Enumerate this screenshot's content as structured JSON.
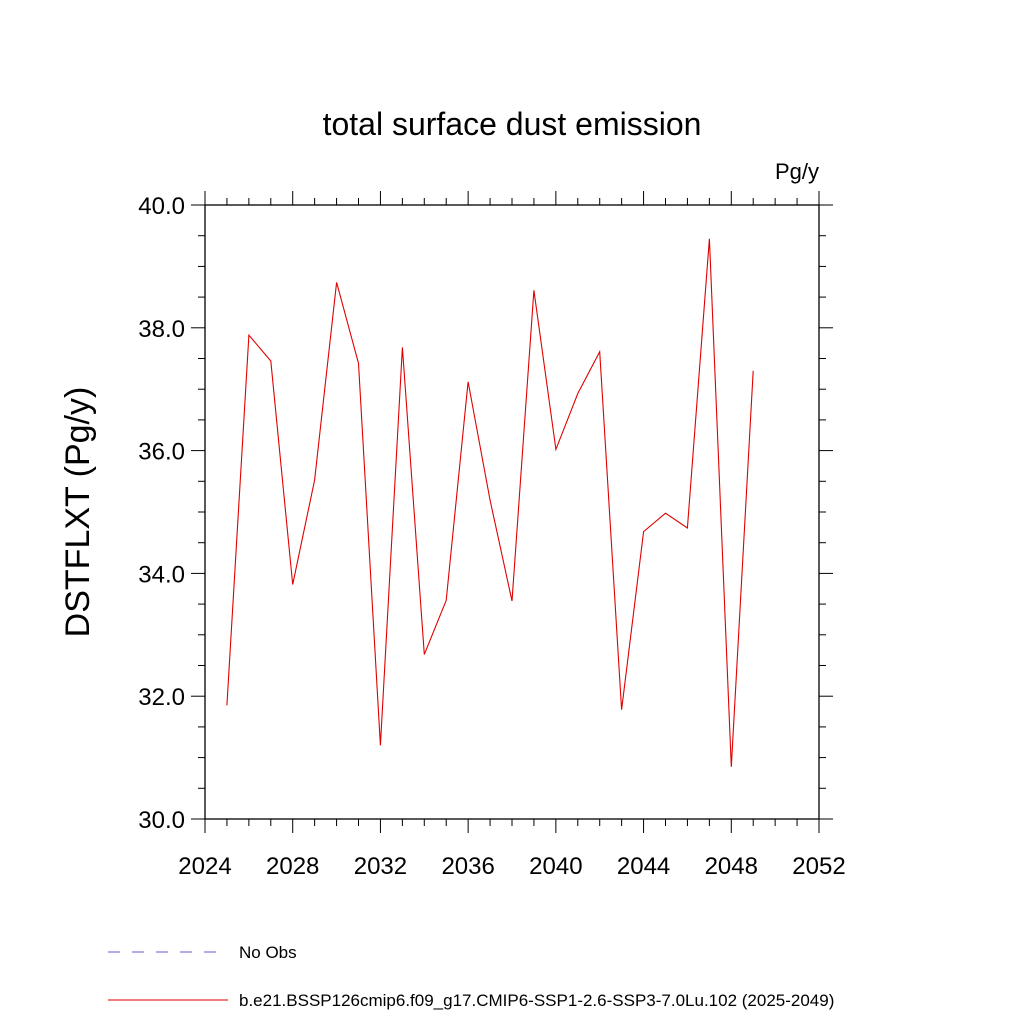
{
  "chart_data": {
    "type": "line",
    "title": "total surface dust emission",
    "units_label": "Pg/y",
    "ylabel": "DSTFLXT  (Pg/y)",
    "xlabel": "",
    "xlim": [
      2024,
      2052
    ],
    "ylim": [
      30.0,
      40.0
    ],
    "xticks": [
      "2024",
      "2028",
      "2032",
      "2036",
      "2040",
      "2044",
      "2048",
      "2052"
    ],
    "yticks": [
      "30.0",
      "32.0",
      "34.0",
      "36.0",
      "38.0",
      "40.0"
    ],
    "grid": false,
    "legend_position": "bottom-left",
    "series": [
      {
        "name": "No Obs",
        "color": "#6a5acd",
        "style": "dashed",
        "x": [],
        "values": []
      },
      {
        "name": "b.e21.BSSP126cmip6.f09_g17.CMIP6-SSP1-2.6-SSP3-7.0Lu.102 (2025-2049)",
        "color": "#e00000",
        "style": "solid",
        "x": [
          2025,
          2026,
          2027,
          2028,
          2029,
          2030,
          2031,
          2032,
          2033,
          2034,
          2035,
          2036,
          2037,
          2038,
          2039,
          2040,
          2041,
          2042,
          2043,
          2044,
          2045,
          2046,
          2047,
          2048,
          2049
        ],
        "values": [
          31.85,
          37.88,
          37.46,
          33.82,
          35.52,
          38.74,
          37.42,
          31.2,
          37.68,
          32.68,
          33.56,
          37.12,
          35.19,
          33.55,
          38.61,
          36.02,
          36.93,
          37.61,
          31.78,
          34.68,
          34.98,
          34.74,
          39.45,
          30.85,
          37.3
        ]
      }
    ]
  }
}
